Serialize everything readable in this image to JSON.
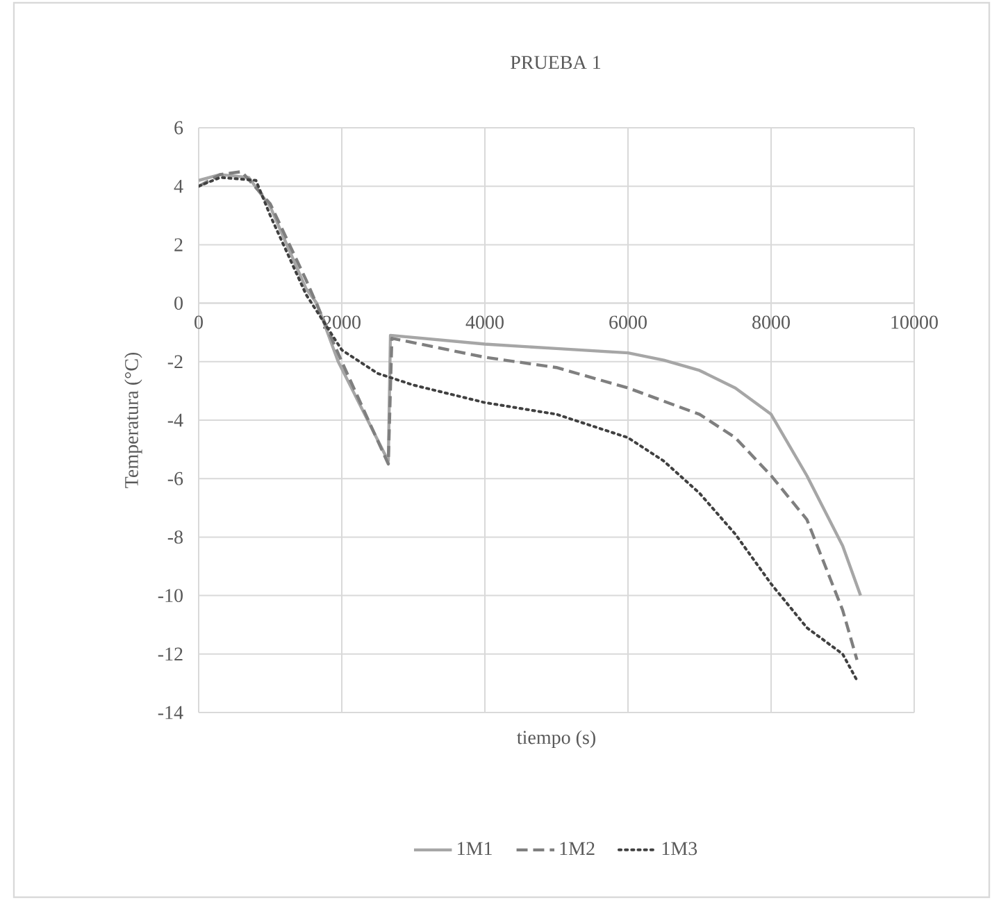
{
  "chart_data": {
    "type": "line",
    "title": "PRUEBA 1",
    "xlabel": "tiempo (s)",
    "ylabel": "Temperatura (°C)",
    "xlim": [
      0,
      10000
    ],
    "xticks": [
      0,
      2000,
      4000,
      6000,
      8000,
      10000
    ],
    "ylim": [
      -14,
      6
    ],
    "yticks": [
      -14,
      -12,
      -10,
      -8,
      -6,
      -4,
      -2,
      0,
      2,
      4,
      6
    ],
    "grid": true,
    "legend": "bottom",
    "marker": "none",
    "series": [
      {
        "name": "1M1",
        "color": "#a6a6a6",
        "line_style": "solid",
        "x": [
          0,
          300,
          700,
          1000,
          1500,
          1650,
          1950,
          2650,
          2680,
          4000,
          5000,
          6000,
          6500,
          7000,
          7500,
          8000,
          8500,
          9000,
          9250
        ],
        "values": [
          4.2,
          4.4,
          4.3,
          3.3,
          0.5,
          0,
          -2,
          -5.4,
          -1.1,
          -1.4,
          -1.55,
          -1.7,
          -1.95,
          -2.3,
          -2.9,
          -3.8,
          -5.9,
          -8.3,
          -10
        ]
      },
      {
        "name": "1M2",
        "color": "#7f7f7f",
        "line_style": "dashed",
        "x": [
          0,
          300,
          600,
          1000,
          1500,
          2000,
          2650,
          2700,
          4000,
          5000,
          6000,
          7000,
          7500,
          8000,
          8500,
          9000,
          9200
        ],
        "values": [
          4.0,
          4.4,
          4.5,
          3.4,
          0.8,
          -2,
          -5.5,
          -1.2,
          -1.85,
          -2.2,
          -2.9,
          -3.8,
          -4.6,
          -5.9,
          -7.4,
          -10.5,
          -12.2
        ]
      },
      {
        "name": "1M3",
        "color": "#404040",
        "line_style": "dotted",
        "x": [
          0,
          300,
          800,
          1000,
          1500,
          2000,
          2500,
          3000,
          4000,
          5000,
          6000,
          6500,
          7000,
          7500,
          8000,
          8500,
          9000,
          9200
        ],
        "values": [
          4.0,
          4.3,
          4.2,
          3.0,
          0.3,
          -1.6,
          -2.4,
          -2.8,
          -3.4,
          -3.8,
          -4.6,
          -5.4,
          -6.5,
          -7.9,
          -9.6,
          -11.1,
          -12.0,
          -12.9
        ]
      }
    ]
  }
}
